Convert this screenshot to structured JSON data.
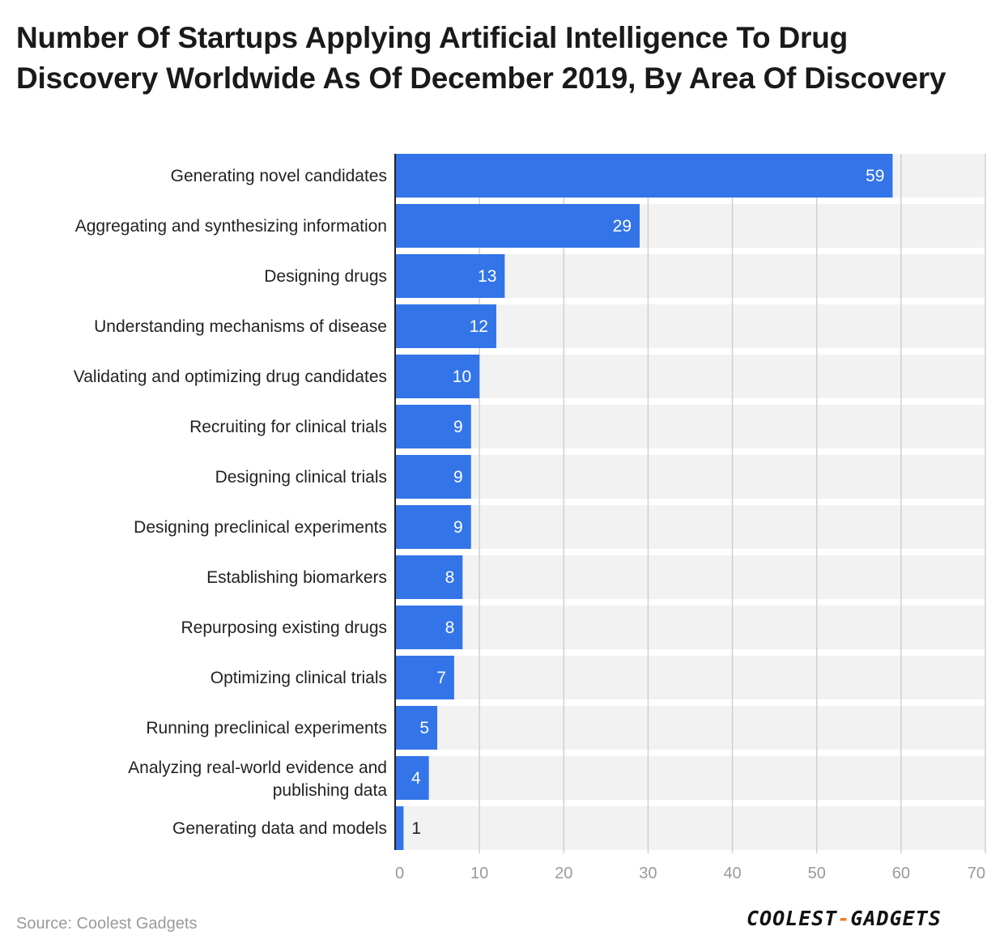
{
  "title": "Number Of Startups Applying Artificial Intelligence To Drug Discovery Worldwide As Of December 2019, By Area Of Discovery",
  "source": "Source: Coolest Gadgets",
  "logo": {
    "left": "COOLEST",
    "dash": "-",
    "right": "GADGETS"
  },
  "colors": {
    "bar": "#3375e8",
    "band": "#f2f2f2",
    "grid": "#d0d0d0",
    "axis": "#222222"
  },
  "chart_data": {
    "type": "bar",
    "orientation": "horizontal",
    "categories": [
      "Generating novel candidates",
      "Aggregating and synthesizing information",
      "Designing drugs",
      "Understanding mechanisms of disease",
      "Validating and optimizing drug candidates",
      "Recruiting for clinical trials",
      "Designing clinical trials",
      "Designing preclinical experiments",
      "Establishing biomarkers",
      "Repurposing existing drugs",
      "Optimizing clinical trials",
      "Running preclinical experiments",
      "Analyzing real-world evidence and publishing data",
      "Generating data and models"
    ],
    "values": [
      59,
      29,
      13,
      12,
      10,
      9,
      9,
      9,
      8,
      8,
      7,
      5,
      4,
      1
    ],
    "xlim": [
      0,
      70
    ],
    "xticks": [
      0,
      10,
      20,
      30,
      40,
      50,
      60,
      70
    ],
    "grid": true,
    "data_labels": true
  }
}
